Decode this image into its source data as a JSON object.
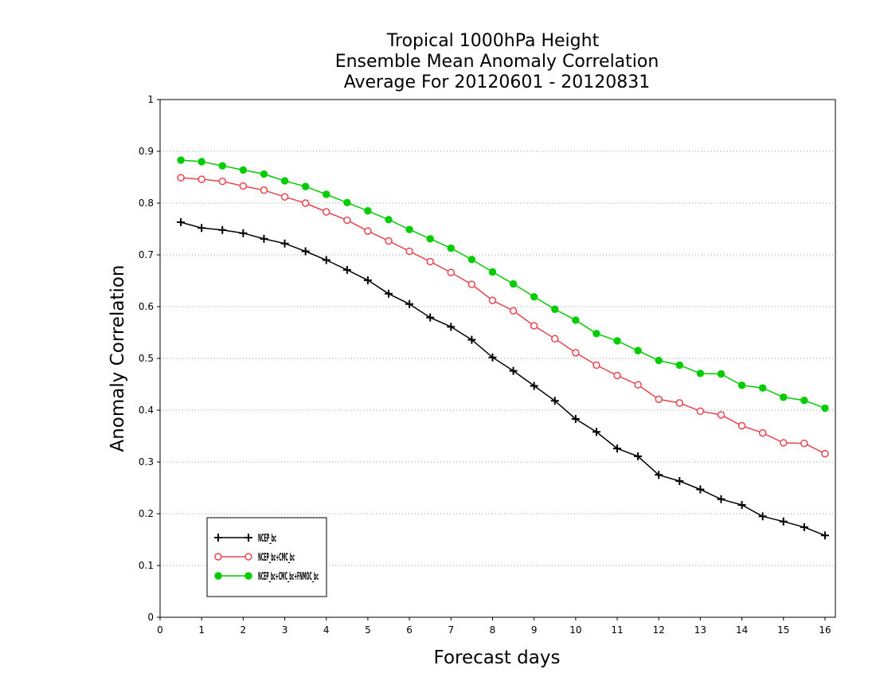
{
  "chart_data": {
    "type": "line",
    "title": [
      "Tropical 1000hPa Height",
      "Ensemble Mean Anomaly Correlation",
      "Average For 20120601 - 20120831"
    ],
    "xlabel": "Forecast days",
    "ylabel": "Anomaly Correlation",
    "xlim": [
      0,
      16.25
    ],
    "ylim": [
      0,
      1
    ],
    "xticks": [
      0,
      1,
      2,
      3,
      4,
      5,
      6,
      7,
      8,
      9,
      10,
      11,
      12,
      13,
      14,
      15,
      16
    ],
    "xtick_labels": [
      "0",
      "1",
      "2",
      "3",
      "4",
      "5",
      "6",
      "7",
      "8",
      "9",
      "10",
      "11",
      "12",
      "13",
      "14",
      "15",
      "16"
    ],
    "yticks": [
      0,
      0.1,
      0.2,
      0.3,
      0.4,
      0.5,
      0.6,
      0.7,
      0.8,
      0.9,
      1
    ],
    "ytick_labels": [
      "0",
      "0.1",
      "0.2",
      "0.3",
      "0.4",
      "0.5",
      "0.6",
      "0.7",
      "0.8",
      "0.9",
      "1"
    ],
    "grid": "horizontal-dotted",
    "legend_position": "bottom-left",
    "x": [
      0.5,
      1,
      1.5,
      2,
      2.5,
      3,
      3.5,
      4,
      4.5,
      5,
      5.5,
      6,
      6.5,
      7,
      7.5,
      8,
      8.5,
      9,
      9.5,
      10,
      10.5,
      11,
      11.5,
      12,
      12.5,
      13,
      13.5,
      14,
      14.5,
      15,
      15.5,
      16
    ],
    "series": [
      {
        "name": "NCEP_bc",
        "color": "#000000",
        "marker": "plus",
        "values": [
          0.763,
          0.752,
          0.748,
          0.742,
          0.731,
          0.722,
          0.707,
          0.69,
          0.671,
          0.651,
          0.625,
          0.605,
          0.579,
          0.561,
          0.536,
          0.502,
          0.476,
          0.447,
          0.418,
          0.383,
          0.358,
          0.326,
          0.311,
          0.275,
          0.263,
          0.247,
          0.228,
          0.217,
          0.195,
          0.185,
          0.174,
          0.158
        ]
      },
      {
        "name": "NCEP_bc+CMC_bc",
        "color": "#e8454f",
        "marker": "open-circle",
        "values": [
          0.849,
          0.846,
          0.842,
          0.833,
          0.825,
          0.812,
          0.8,
          0.783,
          0.767,
          0.746,
          0.727,
          0.707,
          0.687,
          0.666,
          0.643,
          0.612,
          0.592,
          0.563,
          0.538,
          0.511,
          0.487,
          0.467,
          0.449,
          0.421,
          0.414,
          0.398,
          0.391,
          0.37,
          0.356,
          0.337,
          0.336,
          0.316
        ]
      },
      {
        "name": "NCEP_bc+CMC_bc+FNMOC_bc",
        "color": "#00cc00",
        "marker": "filled-circle",
        "values": [
          0.883,
          0.88,
          0.872,
          0.864,
          0.856,
          0.843,
          0.832,
          0.817,
          0.801,
          0.785,
          0.768,
          0.749,
          0.731,
          0.713,
          0.691,
          0.667,
          0.644,
          0.619,
          0.595,
          0.574,
          0.548,
          0.534,
          0.515,
          0.496,
          0.487,
          0.471,
          0.47,
          0.448,
          0.443,
          0.425,
          0.419,
          0.404
        ]
      }
    ]
  }
}
